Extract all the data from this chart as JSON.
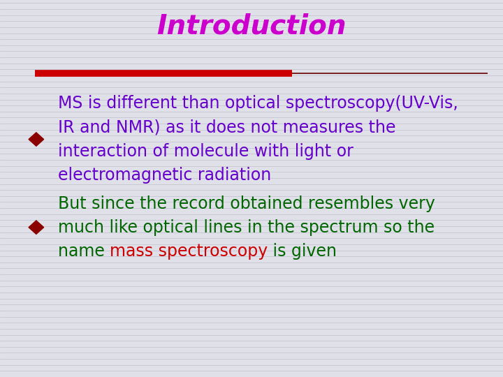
{
  "title": "Introduction",
  "title_color": "#CC00CC",
  "title_fontsize": 28,
  "title_font": "Comic Sans MS",
  "bg_color": "#E0E0E8",
  "line_color_thick": "#CC0000",
  "line_color_thin": "#660000",
  "bullet1_diamond_color": "#8B0000",
  "bullet1_text_color": "#6600CC",
  "bullet1_lines": [
    "MS is different than optical spectroscopy(UV-Vis,",
    "IR and NMR) as it does not measures the",
    "interaction of molecule with light or",
    "electromagnetic radiation"
  ],
  "bullet2_diamond_color": "#8B0000",
  "bullet2_text_color": "#006600",
  "bullet2_highlight_color": "#CC0000",
  "bullet2_lines": [
    "But since the record obtained resembles very",
    "much like optical lines in the spectrum so the"
  ],
  "bullet2_line3_before": "name ",
  "bullet2_line3_highlight": "mass spectroscopy",
  "bullet2_line3_after": " is given",
  "text_fontsize": 17,
  "text_font": "Comic Sans MS",
  "horizontal_lines_color": "#B8B8C8",
  "horizontal_lines_alpha": 0.8
}
